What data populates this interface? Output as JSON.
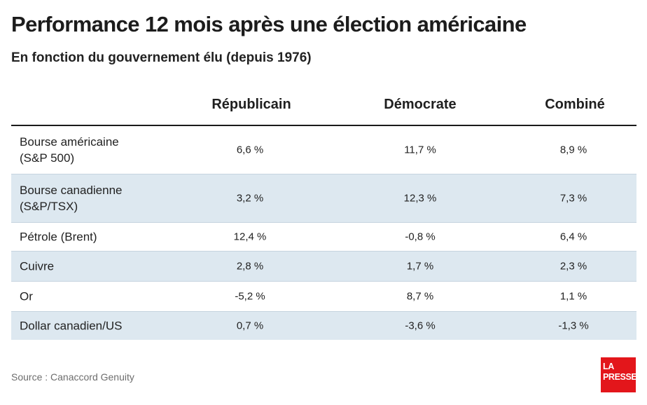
{
  "chart_data": {
    "type": "table",
    "title": "Performance 12 mois après une élection américaine",
    "subtitle": "En fonction du gouvernement élu (depuis 1976)",
    "columns": [
      "Républicain",
      "Démocrate",
      "Combiné"
    ],
    "rows": [
      {
        "label_lines": [
          "Bourse américaine",
          "(S&P 500)"
        ],
        "values": [
          "6,6 %",
          "11,7 %",
          "8,9 %"
        ],
        "numeric": [
          6.6,
          11.7,
          8.9
        ]
      },
      {
        "label_lines": [
          "Bourse canadienne",
          "(S&P/TSX)"
        ],
        "values": [
          "3,2 %",
          "12,3 %",
          "7,3 %"
        ],
        "numeric": [
          3.2,
          12.3,
          7.3
        ]
      },
      {
        "label_lines": [
          "Pétrole (Brent)"
        ],
        "values": [
          "12,4 %",
          "-0,8 %",
          "6,4 %"
        ],
        "numeric": [
          12.4,
          -0.8,
          6.4
        ]
      },
      {
        "label_lines": [
          "Cuivre"
        ],
        "values": [
          "2,8 %",
          "1,7 %",
          "2,3 %"
        ],
        "numeric": [
          2.8,
          1.7,
          2.3
        ]
      },
      {
        "label_lines": [
          "Or"
        ],
        "values": [
          "-5,2 %",
          "8,7 %",
          "1,1 %"
        ],
        "numeric": [
          -5.2,
          8.7,
          1.1
        ]
      },
      {
        "label_lines": [
          "Dollar canadien/US"
        ],
        "values": [
          "0,7 %",
          "-3,6 %",
          "-1,3 %"
        ],
        "numeric": [
          0.7,
          -3.6,
          -1.3
        ]
      }
    ],
    "unit": "%"
  },
  "footer": {
    "source": "Source : Canaccord Genuity",
    "logo_line1": "LA",
    "logo_line2": "PRESSE"
  },
  "colors": {
    "row_shade": "#dde8f0",
    "logo_red": "#e3161b"
  }
}
